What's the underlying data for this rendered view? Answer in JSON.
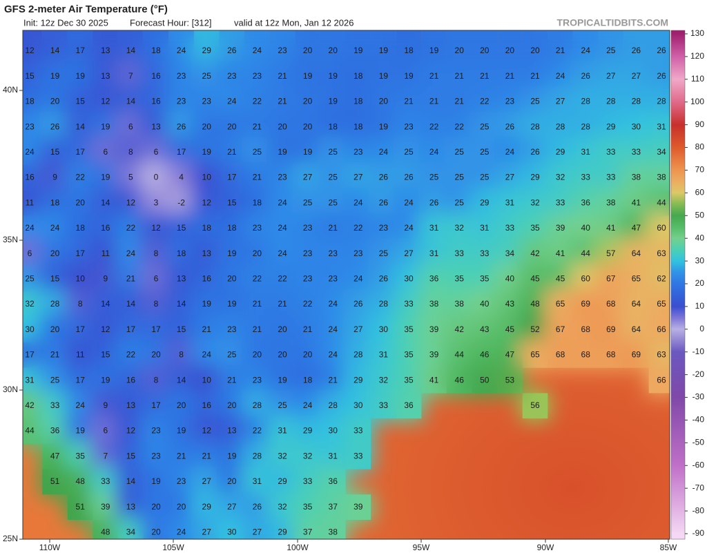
{
  "header": {
    "title": "GFS 2-meter Air Temperature (°F)",
    "subtitle": [
      "Init: 12z Dec 30 2025",
      "Forecast Hour: [312]",
      "valid at 12z Mon, Jan 12 2026"
    ],
    "source": "TROPICALTIDBITS.COM"
  },
  "map": {
    "latitude_labels": [
      "40N",
      "35N",
      "30N",
      "25N"
    ],
    "longitude_labels": [
      "110W",
      "105W",
      "100W",
      "95W",
      "90W",
      "85W"
    ],
    "temperature_grid": [
      [
        12,
        14,
        17,
        13,
        14,
        18,
        24,
        29,
        26,
        24,
        23,
        20,
        20,
        19,
        19,
        18,
        19,
        20,
        20,
        20,
        20,
        21,
        24,
        25,
        26,
        26
      ],
      [
        15,
        19,
        19,
        13,
        7,
        16,
        23,
        25,
        23,
        23,
        21,
        19,
        19,
        18,
        19,
        19,
        21,
        21,
        21,
        21,
        21,
        24,
        26,
        27,
        27,
        26
      ],
      [
        18,
        20,
        15,
        12,
        14,
        16,
        23,
        23,
        24,
        22,
        21,
        20,
        19,
        18,
        20,
        21,
        21,
        21,
        22,
        23,
        25,
        27,
        28,
        28,
        28,
        28
      ],
      [
        23,
        26,
        14,
        19,
        6,
        13,
        26,
        20,
        20,
        21,
        20,
        20,
        18,
        18,
        19,
        23,
        22,
        22,
        25,
        26,
        28,
        28,
        28,
        29,
        30,
        31
      ],
      [
        24,
        15,
        17,
        6,
        8,
        6,
        17,
        19,
        21,
        25,
        19,
        19,
        25,
        23,
        24,
        25,
        24,
        25,
        25,
        24,
        26,
        29,
        31,
        33,
        33,
        34
      ],
      [
        16,
        9,
        22,
        19,
        5,
        0,
        4,
        10,
        17,
        21,
        23,
        27,
        25,
        27,
        26,
        26,
        25,
        25,
        25,
        27,
        29,
        32,
        33,
        33,
        38,
        38
      ],
      [
        11,
        18,
        20,
        14,
        12,
        3,
        -2,
        12,
        15,
        18,
        24,
        25,
        25,
        24,
        26,
        24,
        26,
        25,
        29,
        31,
        32,
        33,
        36,
        38,
        41,
        44
      ],
      [
        24,
        24,
        18,
        16,
        22,
        12,
        15,
        18,
        18,
        23,
        24,
        23,
        21,
        22,
        23,
        24,
        31,
        32,
        31,
        33,
        35,
        39,
        40,
        41,
        47,
        60
      ],
      [
        6,
        20,
        17,
        11,
        24,
        8,
        18,
        13,
        19,
        20,
        24,
        23,
        23,
        23,
        25,
        27,
        31,
        33,
        33,
        34,
        42,
        41,
        44,
        57,
        64,
        63
      ],
      [
        25,
        15,
        10,
        9,
        21,
        6,
        13,
        16,
        20,
        22,
        22,
        23,
        23,
        24,
        26,
        30,
        36,
        35,
        35,
        40,
        45,
        45,
        60,
        67,
        65,
        62
      ],
      [
        32,
        28,
        8,
        14,
        14,
        8,
        14,
        19,
        19,
        21,
        21,
        22,
        24,
        26,
        28,
        33,
        38,
        38,
        40,
        43,
        48,
        65,
        69,
        68,
        64,
        65
      ],
      [
        30,
        20,
        17,
        12,
        17,
        17,
        15,
        21,
        23,
        21,
        20,
        21,
        24,
        27,
        30,
        35,
        39,
        42,
        43,
        45,
        52,
        67,
        68,
        69,
        64,
        66
      ],
      [
        17,
        21,
        11,
        15,
        22,
        20,
        8,
        24,
        25,
        20,
        20,
        20,
        24,
        28,
        31,
        35,
        39,
        44,
        46,
        47,
        65,
        68,
        68,
        68,
        69,
        63
      ],
      [
        31,
        25,
        17,
        19,
        16,
        8,
        14,
        10,
        21,
        23,
        19,
        18,
        21,
        29,
        32,
        35,
        41,
        46,
        50,
        53,
        null,
        null,
        null,
        null,
        null,
        66
      ],
      [
        42,
        33,
        24,
        9,
        13,
        17,
        20,
        16,
        20,
        28,
        25,
        24,
        28,
        30,
        33,
        36,
        null,
        null,
        null,
        null,
        56,
        null,
        null,
        null,
        null,
        null
      ],
      [
        44,
        36,
        19,
        6,
        12,
        23,
        19,
        12,
        13,
        22,
        31,
        29,
        30,
        33,
        null,
        null,
        null,
        null,
        null,
        null,
        null,
        null,
        null,
        null,
        null,
        null
      ],
      [
        null,
        47,
        35,
        7,
        15,
        23,
        21,
        21,
        19,
        28,
        32,
        32,
        31,
        33,
        null,
        null,
        null,
        null,
        null,
        null,
        null,
        null,
        null,
        null,
        null,
        null
      ],
      [
        null,
        51,
        48,
        33,
        14,
        19,
        23,
        27,
        20,
        31,
        29,
        33,
        36,
        null,
        null,
        null,
        null,
        null,
        null,
        null,
        null,
        null,
        null,
        null,
        null,
        null
      ],
      [
        null,
        null,
        51,
        39,
        13,
        20,
        20,
        29,
        27,
        26,
        32,
        35,
        37,
        39,
        null,
        null,
        null,
        null,
        null,
        null,
        null,
        null,
        null,
        null,
        null,
        null
      ],
      [
        null,
        null,
        null,
        48,
        34,
        20,
        24,
        27,
        30,
        27,
        29,
        37,
        38,
        null,
        null,
        null,
        null,
        null,
        null,
        null,
        null,
        null,
        null,
        null,
        null,
        null
      ]
    ]
  },
  "colorbar": {
    "ticks": [
      130,
      120,
      110,
      100,
      90,
      80,
      70,
      60,
      50,
      40,
      30,
      20,
      10,
      0,
      -10,
      -20,
      -30,
      -40,
      -50,
      -60,
      -70,
      -80,
      -90
    ]
  }
}
